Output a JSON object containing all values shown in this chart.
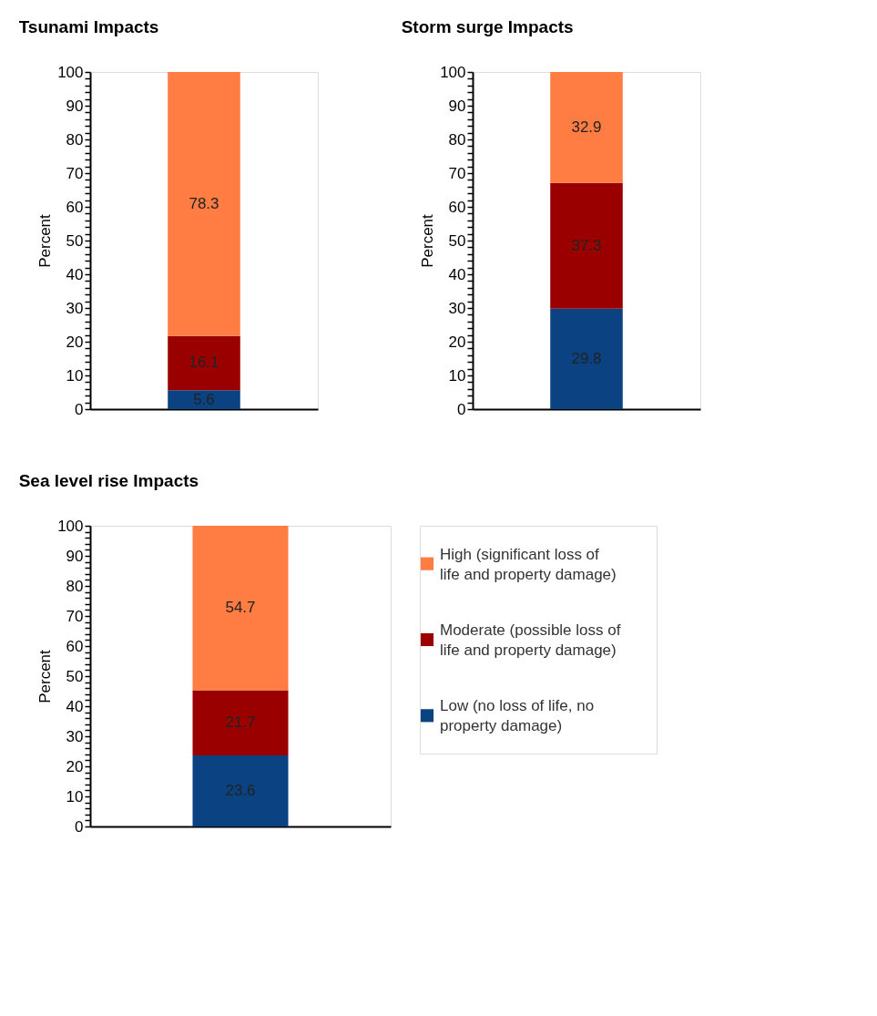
{
  "chart_data": [
    {
      "type": "bar",
      "title": "Tsunami Impacts",
      "ylabel": "Percent",
      "categories": [
        null
      ],
      "stacked": true,
      "data_labels": true,
      "ylim": [
        0,
        100
      ],
      "yticks": [
        0,
        {
          "value": 2,
          "label": null
        },
        {
          "value": 4,
          "label": null
        },
        {
          "value": 6,
          "label": null
        },
        {
          "value": 8,
          "label": null
        },
        10,
        {
          "value": 12,
          "label": null
        },
        {
          "value": 14,
          "label": null
        },
        {
          "value": 16,
          "label": null
        },
        {
          "value": 18,
          "label": null
        },
        20,
        {
          "value": 22,
          "label": null
        },
        {
          "value": 24,
          "label": null
        },
        {
          "value": 26,
          "label": null
        },
        {
          "value": 28,
          "label": null
        },
        30,
        {
          "value": 32,
          "label": null
        },
        {
          "value": 34,
          "label": null
        },
        {
          "value": 36,
          "label": null
        },
        {
          "value": 38,
          "label": null
        },
        40,
        {
          "value": 42,
          "label": null
        },
        {
          "value": 44,
          "label": null
        },
        {
          "value": 46,
          "label": null
        },
        {
          "value": 48,
          "label": null
        },
        50,
        {
          "value": 52,
          "label": null
        },
        {
          "value": 54,
          "label": null
        },
        {
          "value": 56,
          "label": null
        },
        {
          "value": 58,
          "label": null
        },
        60,
        {
          "value": 62,
          "label": null
        },
        {
          "value": 64,
          "label": null
        },
        {
          "value": 66,
          "label": null
        },
        {
          "value": 68,
          "label": null
        },
        70,
        {
          "value": 72,
          "label": null
        },
        {
          "value": 74,
          "label": null
        },
        {
          "value": 76,
          "label": null
        },
        {
          "value": 78,
          "label": null
        },
        80,
        {
          "value": 82,
          "label": null
        },
        {
          "value": 84,
          "label": null
        },
        {
          "value": 86,
          "label": null
        },
        {
          "value": 88,
          "label": null
        },
        90,
        {
          "value": 92,
          "label": null
        },
        {
          "value": 94,
          "label": null
        },
        {
          "value": 96,
          "label": null
        },
        {
          "value": 98,
          "label": null
        },
        100
      ],
      "series": [
        {
          "color": "#0b4282",
          "values": [
            5.6
          ]
        },
        {
          "color": "#9a0000",
          "values": [
            16.1
          ]
        },
        {
          "color": "#ff7c43",
          "values": [
            78.3
          ]
        }
      ]
    },
    {
      "type": "bar",
      "title": "Storm surge Impacts",
      "ylabel": "Percent",
      "categories": [
        null
      ],
      "stacked": true,
      "data_labels": true,
      "ylim": [
        0,
        100
      ],
      "yticks": [
        0,
        {
          "value": 2,
          "label": null
        },
        {
          "value": 4,
          "label": null
        },
        {
          "value": 6,
          "label": null
        },
        {
          "value": 8,
          "label": null
        },
        10,
        {
          "value": 12,
          "label": null
        },
        {
          "value": 14,
          "label": null
        },
        {
          "value": 16,
          "label": null
        },
        {
          "value": 18,
          "label": null
        },
        20,
        {
          "value": 22,
          "label": null
        },
        {
          "value": 24,
          "label": null
        },
        {
          "value": 26,
          "label": null
        },
        {
          "value": 28,
          "label": null
        },
        30,
        {
          "value": 32,
          "label": null
        },
        {
          "value": 34,
          "label": null
        },
        {
          "value": 36,
          "label": null
        },
        {
          "value": 38,
          "label": null
        },
        40,
        {
          "value": 42,
          "label": null
        },
        {
          "value": 44,
          "label": null
        },
        {
          "value": 46,
          "label": null
        },
        {
          "value": 48,
          "label": null
        },
        50,
        {
          "value": 52,
          "label": null
        },
        {
          "value": 54,
          "label": null
        },
        {
          "value": 56,
          "label": null
        },
        {
          "value": 58,
          "label": null
        },
        60,
        {
          "value": 62,
          "label": null
        },
        {
          "value": 64,
          "label": null
        },
        {
          "value": 66,
          "label": null
        },
        {
          "value": 68,
          "label": null
        },
        70,
        {
          "value": 72,
          "label": null
        },
        {
          "value": 74,
          "label": null
        },
        {
          "value": 76,
          "label": null
        },
        {
          "value": 78,
          "label": null
        },
        80,
        {
          "value": 82,
          "label": null
        },
        {
          "value": 84,
          "label": null
        },
        {
          "value": 86,
          "label": null
        },
        {
          "value": 88,
          "label": null
        },
        90,
        {
          "value": 92,
          "label": null
        },
        {
          "value": 94,
          "label": null
        },
        {
          "value": 96,
          "label": null
        },
        {
          "value": 98,
          "label": null
        },
        100
      ],
      "series": [
        {
          "color": "#0b4282",
          "values": [
            29.8
          ]
        },
        {
          "color": "#9a0000",
          "values": [
            37.3
          ]
        },
        {
          "color": "#ff7c43",
          "values": [
            32.9
          ]
        }
      ]
    },
    {
      "type": "bar",
      "title": "Sea level rise Impacts",
      "ylabel": "Percent",
      "categories": [
        null
      ],
      "stacked": true,
      "data_labels": true,
      "legend": "right",
      "ylim": [
        0,
        100
      ],
      "yticks": [
        0,
        {
          "value": 2,
          "label": null
        },
        {
          "value": 4,
          "label": null
        },
        {
          "value": 6,
          "label": null
        },
        {
          "value": 8,
          "label": null
        },
        10,
        {
          "value": 12,
          "label": null
        },
        {
          "value": 14,
          "label": null
        },
        {
          "value": 16,
          "label": null
        },
        {
          "value": 18,
          "label": null
        },
        20,
        {
          "value": 22,
          "label": null
        },
        {
          "value": 24,
          "label": null
        },
        {
          "value": 26,
          "label": null
        },
        {
          "value": 28,
          "label": null
        },
        30,
        {
          "value": 32,
          "label": null
        },
        {
          "value": 34,
          "label": null
        },
        {
          "value": 36,
          "label": null
        },
        {
          "value": 38,
          "label": null
        },
        40,
        {
          "value": 42,
          "label": null
        },
        {
          "value": 44,
          "label": null
        },
        {
          "value": 46,
          "label": null
        },
        {
          "value": 48,
          "label": null
        },
        50,
        {
          "value": 52,
          "label": null
        },
        {
          "value": 54,
          "label": null
        },
        {
          "value": 56,
          "label": null
        },
        {
          "value": 58,
          "label": null
        },
        60,
        {
          "value": 62,
          "label": null
        },
        {
          "value": 64,
          "label": null
        },
        {
          "value": 66,
          "label": null
        },
        {
          "value": 68,
          "label": null
        },
        70,
        {
          "value": 72,
          "label": null
        },
        {
          "value": 74,
          "label": null
        },
        {
          "value": 76,
          "label": null
        },
        {
          "value": 78,
          "label": null
        },
        80,
        {
          "value": 82,
          "label": null
        },
        {
          "value": 84,
          "label": null
        },
        {
          "value": 86,
          "label": null
        },
        {
          "value": 88,
          "label": null
        },
        90,
        {
          "value": 92,
          "label": null
        },
        {
          "value": 94,
          "label": null
        },
        {
          "value": 96,
          "label": null
        },
        {
          "value": 98,
          "label": null
        },
        100
      ],
      "series": [
        {
          "name": "Low (no loss of life, no property damage)",
          "color": "#0b4282",
          "values": [
            23.6
          ]
        },
        {
          "name": "Moderate (possible loss of life and property damage)",
          "color": "#9a0000",
          "values": [
            21.7
          ]
        },
        {
          "name": "High (significant loss of life and property damage)",
          "color": "#ff7c43",
          "values": [
            54.7
          ]
        }
      ]
    }
  ]
}
